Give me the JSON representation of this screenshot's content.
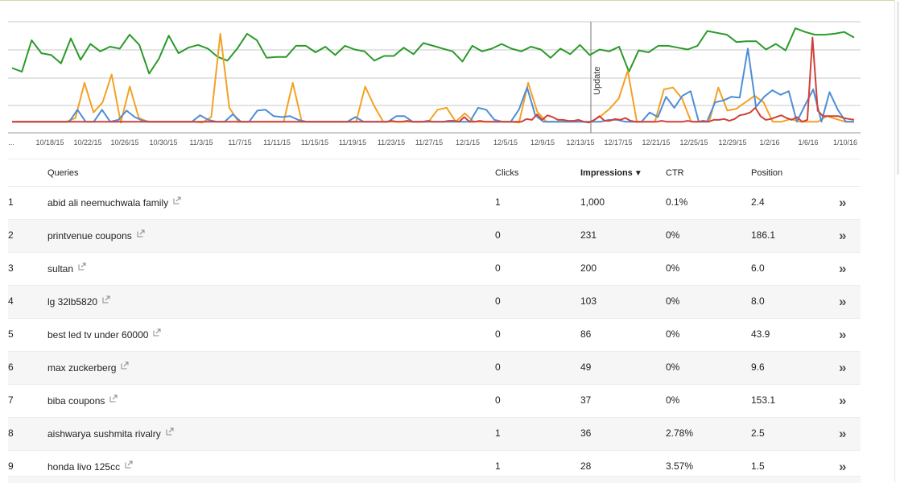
{
  "chart_data": {
    "type": "line",
    "x_ticks": [
      "...",
      "10/18/15",
      "10/22/15",
      "10/26/15",
      "10/30/15",
      "11/3/15",
      "11/7/15",
      "11/11/15",
      "11/15/15",
      "11/19/15",
      "11/23/15",
      "11/27/15",
      "12/1/15",
      "12/5/15",
      "12/9/15",
      "12/13/15",
      "12/17/15",
      "12/21/15",
      "12/25/15",
      "12/29/15",
      "1/2/16",
      "1/6/16",
      "1/10/16"
    ],
    "annotation": "Update",
    "grid": true,
    "series": [
      {
        "color": "#2a9a2a",
        "values": [
          70,
          66,
          100,
          86,
          84,
          75,
          102,
          79,
          96,
          88,
          93,
          91,
          106,
          95,
          64,
          80,
          105,
          86,
          92,
          95,
          91,
          82,
          78,
          91,
          107,
          100,
          81,
          82,
          82,
          94,
          94,
          87,
          93,
          84,
          94,
          90,
          88,
          78,
          83,
          83,
          92,
          85,
          97,
          94,
          91,
          88,
          77,
          94,
          88,
          91,
          96,
          91,
          88,
          93,
          90,
          81,
          91,
          85,
          95,
          84,
          90,
          88,
          93,
          66,
          89,
          87,
          94,
          94,
          92,
          90,
          94,
          110,
          108,
          106,
          98,
          99,
          99,
          90,
          96,
          89,
          113,
          109,
          106,
          106,
          107,
          109,
          103
        ]
      },
      {
        "color": "#f4a124",
        "values": [
          12,
          12,
          12,
          12,
          12,
          12,
          12,
          16,
          54,
          22,
          33,
          63,
          11,
          50,
          16,
          12,
          12,
          12,
          12,
          12,
          12,
          11,
          17,
          107,
          27,
          12,
          12,
          12,
          12,
          12,
          12,
          54,
          12,
          12,
          12,
          12,
          12,
          12,
          12,
          50,
          29,
          12,
          12,
          12,
          12,
          12,
          12,
          25,
          27,
          12,
          21,
          12,
          12,
          12,
          12,
          12,
          11,
          54,
          23,
          12,
          12,
          12,
          12,
          12,
          12,
          18,
          26,
          37,
          67,
          12,
          12,
          12,
          47,
          49,
          37,
          12,
          12,
          12,
          49,
          24,
          26,
          33,
          40,
          33,
          12,
          12,
          15,
          12,
          12,
          12,
          18,
          15,
          12,
          12
        ]
      },
      {
        "color": "#4d8ed8",
        "values": [
          12,
          12,
          12,
          12,
          12,
          12,
          12,
          12,
          25,
          12,
          12,
          25,
          12,
          14,
          24,
          17,
          13,
          12,
          12,
          12,
          12,
          12,
          12,
          19,
          14,
          12,
          12,
          20,
          12,
          12,
          24,
          25,
          18,
          17,
          18,
          14,
          12,
          12,
          12,
          12,
          12,
          12,
          17,
          12,
          12,
          12,
          12,
          18,
          18,
          12,
          12,
          12,
          12,
          12,
          12,
          12,
          12,
          27,
          25,
          14,
          12,
          12,
          25,
          49,
          19,
          12,
          12,
          12,
          12,
          12,
          12,
          12,
          12,
          14,
          14,
          12,
          12,
          12,
          22,
          17,
          39,
          27,
          40,
          45,
          12,
          12,
          33,
          35,
          39,
          38,
          91,
          28,
          39,
          46,
          41,
          45,
          12,
          30,
          47,
          12,
          44,
          25,
          12,
          12
        ]
      },
      {
        "color": "#d0403a",
        "values": [
          12,
          12,
          12,
          12,
          12,
          12,
          12,
          12,
          12,
          12,
          12,
          12,
          12,
          12,
          12,
          12,
          12,
          12,
          12,
          12,
          12,
          12,
          12,
          12,
          12,
          12,
          12,
          12,
          12,
          12,
          12,
          12,
          12,
          12,
          12,
          12,
          12,
          12,
          12,
          12,
          12,
          12,
          12,
          12,
          12,
          12,
          12,
          12,
          12,
          12,
          12,
          12,
          12,
          12,
          12,
          12,
          12,
          12,
          12,
          12,
          12,
          12,
          12,
          12,
          12,
          12,
          12,
          12,
          12,
          12,
          12,
          12,
          12,
          13,
          12,
          12,
          13,
          12,
          12,
          12,
          13,
          12,
          12,
          12,
          13,
          13,
          12,
          17,
          12,
          12,
          13,
          12,
          12,
          12,
          12,
          12,
          12,
          12,
          12,
          15,
          14,
          20,
          14,
          19,
          17,
          14,
          14,
          13,
          13,
          14,
          12,
          11,
          14,
          18,
          13,
          13,
          15,
          14,
          16,
          13,
          12,
          12,
          12,
          12,
          12,
          13,
          12,
          12,
          12,
          12,
          13,
          12,
          12,
          13,
          12,
          14,
          14,
          15,
          13,
          15,
          19,
          20,
          22,
          27,
          18,
          14,
          15,
          17,
          19,
          16,
          14,
          17,
          12,
          14,
          103,
          24,
          18,
          18,
          18,
          18,
          16,
          15,
          14
        ]
      }
    ]
  },
  "table": {
    "headers": {
      "queries": "Queries",
      "clicks": "Clicks",
      "impressions": "Impressions",
      "sort_indicator": "▼",
      "ctr": "CTR",
      "position": "Position"
    },
    "expand_glyph": "»",
    "rows": [
      {
        "index": "1",
        "query": "abid ali neemuchwala family",
        "clicks": "1",
        "impressions": "1,000",
        "ctr": "0.1%",
        "position": "2.4"
      },
      {
        "index": "2",
        "query": "printvenue coupons",
        "clicks": "0",
        "impressions": "231",
        "ctr": "0%",
        "position": "186.1"
      },
      {
        "index": "3",
        "query": "sultan",
        "clicks": "0",
        "impressions": "200",
        "ctr": "0%",
        "position": "6.0"
      },
      {
        "index": "4",
        "query": "lg 32lb5820",
        "clicks": "0",
        "impressions": "103",
        "ctr": "0%",
        "position": "8.0"
      },
      {
        "index": "5",
        "query": "best led tv under 60000",
        "clicks": "0",
        "impressions": "86",
        "ctr": "0%",
        "position": "43.9"
      },
      {
        "index": "6",
        "query": "max zuckerberg",
        "clicks": "0",
        "impressions": "49",
        "ctr": "0%",
        "position": "9.6"
      },
      {
        "index": "7",
        "query": "biba coupons",
        "clicks": "0",
        "impressions": "37",
        "ctr": "0%",
        "position": "153.1"
      },
      {
        "index": "8",
        "query": "aishwarya sushmita rivalry",
        "clicks": "1",
        "impressions": "36",
        "ctr": "2.78%",
        "position": "2.5"
      },
      {
        "index": "9",
        "query": "honda livo 125cc",
        "clicks": "1",
        "impressions": "28",
        "ctr": "3.57%",
        "position": "1.5"
      }
    ]
  }
}
